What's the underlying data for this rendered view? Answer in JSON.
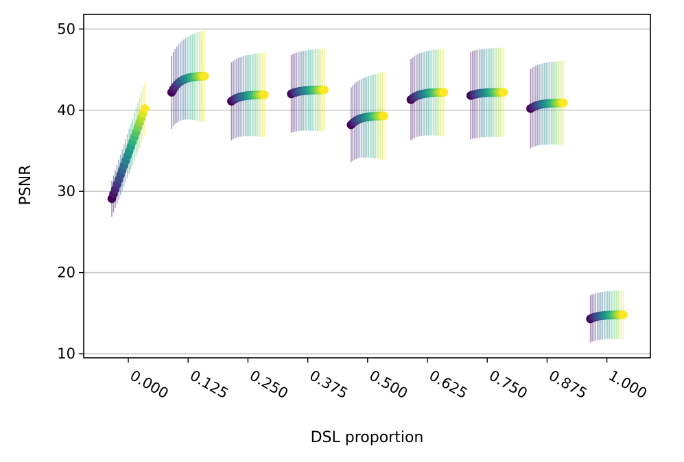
{
  "chart_data": {
    "type": "scatter",
    "title": "",
    "xlabel": "DSL proportion",
    "ylabel": "PSNR",
    "categories": [
      "0.000",
      "0.125",
      "0.250",
      "0.375",
      "0.500",
      "0.625",
      "0.750",
      "0.875",
      "1.000"
    ],
    "y_ticks": [
      "10",
      "20",
      "30",
      "40",
      "50"
    ],
    "ylim": [
      9.5,
      51.8
    ],
    "grid": "horizontal",
    "colormap": "viridis",
    "groups": [
      {
        "category": "0.000",
        "start": 29.1,
        "end": 40.2,
        "err_start": 2.2,
        "err_end": 3.3,
        "curve": "linear"
      },
      {
        "category": "0.125",
        "start": 42.2,
        "end": 44.2,
        "err_start": 4.5,
        "err_end": 5.7,
        "curve": "sat"
      },
      {
        "category": "0.250",
        "start": 41.1,
        "end": 41.9,
        "err_start": 4.8,
        "err_end": 5.2,
        "curve": "sat"
      },
      {
        "category": "0.375",
        "start": 42.0,
        "end": 42.5,
        "err_start": 4.8,
        "err_end": 5.1,
        "curve": "sat"
      },
      {
        "category": "0.500",
        "start": 38.2,
        "end": 39.3,
        "err_start": 4.6,
        "err_end": 5.4,
        "curve": "sat"
      },
      {
        "category": "0.625",
        "start": 41.3,
        "end": 42.2,
        "err_start": 5.0,
        "err_end": 5.4,
        "curve": "sat"
      },
      {
        "category": "0.750",
        "start": 41.8,
        "end": 42.2,
        "err_start": 5.4,
        "err_end": 5.5,
        "curve": "sat"
      },
      {
        "category": "0.875",
        "start": 40.2,
        "end": 40.9,
        "err_start": 4.9,
        "err_end": 5.2,
        "curve": "sat"
      },
      {
        "category": "1.000",
        "start": 14.3,
        "end": 14.8,
        "err_start": 2.9,
        "err_end": 3.0,
        "curve": "sat"
      }
    ]
  }
}
